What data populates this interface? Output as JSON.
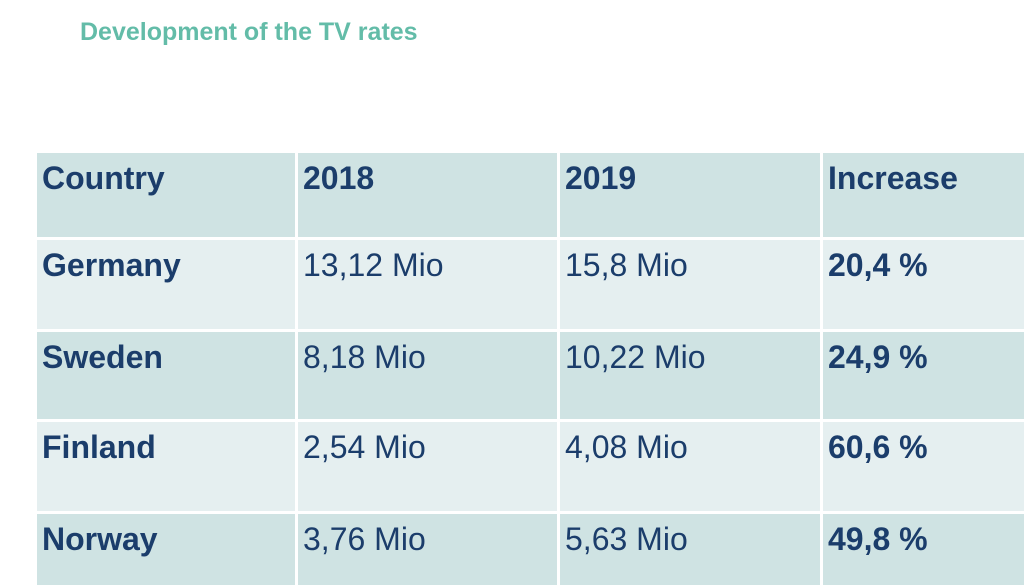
{
  "header": {
    "title": "Development of the TV rates"
  },
  "table": {
    "columns": [
      "Country",
      "2018",
      "2019",
      "Increase"
    ],
    "rows": [
      [
        "Germany",
        "13,12 Mio",
        "15,8 Mio",
        "20,4 %"
      ],
      [
        "Sweden",
        "8,18 Mio",
        "10,22 Mio",
        "24,9 %"
      ],
      [
        "Finland",
        "2,54 Mio",
        "4,08 Mio",
        "60,6 %"
      ],
      [
        "Norway",
        "3,76 Mio",
        "5,63 Mio",
        "49,8 %"
      ]
    ]
  }
}
